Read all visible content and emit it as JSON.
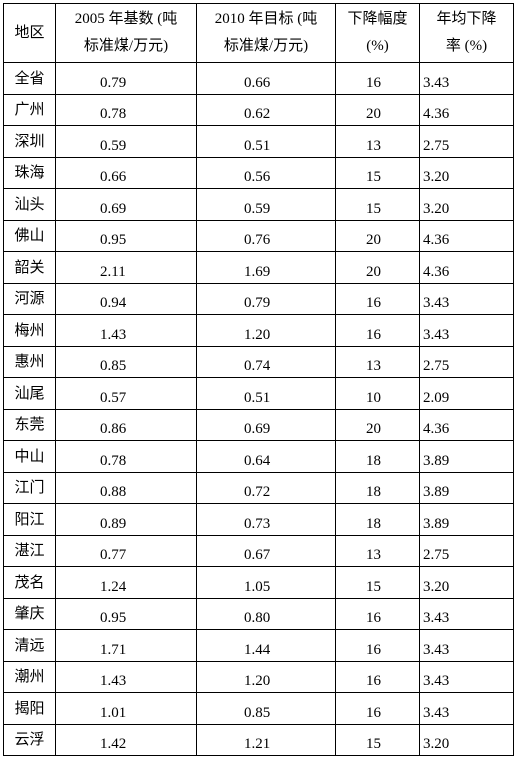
{
  "headers": {
    "region": "地区",
    "base_line1": "2005 年基数 (吨",
    "base_line2": "标准煤/万元)",
    "target_line1": "2010 年目标 (吨",
    "target_line2": "标准煤/万元)",
    "drop_line1": "下降幅度",
    "drop_line2": "(%)",
    "rate_line1": "年均下降",
    "rate_line2": "率 (%)"
  },
  "rows": [
    {
      "region": "全省",
      "base": "0.79",
      "target": "0.66",
      "drop": "16",
      "rate": "3.43"
    },
    {
      "region": "广州",
      "base": "0.78",
      "target": "0.62",
      "drop": "20",
      "rate": "4.36"
    },
    {
      "region": "深圳",
      "base": "0.59",
      "target": "0.51",
      "drop": "13",
      "rate": "2.75"
    },
    {
      "region": "珠海",
      "base": "0.66",
      "target": "0.56",
      "drop": "15",
      "rate": "3.20"
    },
    {
      "region": "汕头",
      "base": "0.69",
      "target": "0.59",
      "drop": "15",
      "rate": "3.20"
    },
    {
      "region": "佛山",
      "base": "0.95",
      "target": "0.76",
      "drop": "20",
      "rate": "4.36"
    },
    {
      "region": "韶关",
      "base": "2.11",
      "target": "1.69",
      "drop": "20",
      "rate": "4.36"
    },
    {
      "region": "河源",
      "base": "0.94",
      "target": "0.79",
      "drop": "16",
      "rate": "3.43"
    },
    {
      "region": "梅州",
      "base": "1.43",
      "target": "1.20",
      "drop": "16",
      "rate": "3.43"
    },
    {
      "region": "惠州",
      "base": "0.85",
      "target": "0.74",
      "drop": "13",
      "rate": "2.75"
    },
    {
      "region": "汕尾",
      "base": "0.57",
      "target": "0.51",
      "drop": "10",
      "rate": "2.09"
    },
    {
      "region": "东莞",
      "base": "0.86",
      "target": "0.69",
      "drop": "20",
      "rate": "4.36"
    },
    {
      "region": "中山",
      "base": "0.78",
      "target": "0.64",
      "drop": "18",
      "rate": "3.89"
    },
    {
      "region": "江门",
      "base": "0.88",
      "target": "0.72",
      "drop": "18",
      "rate": "3.89"
    },
    {
      "region": "阳江",
      "base": "0.89",
      "target": "0.73",
      "drop": "18",
      "rate": "3.89"
    },
    {
      "region": "湛江",
      "base": "0.77",
      "target": "0.67",
      "drop": "13",
      "rate": "2.75"
    },
    {
      "region": "茂名",
      "base": "1.24",
      "target": "1.05",
      "drop": "15",
      "rate": "3.20"
    },
    {
      "region": "肇庆",
      "base": "0.95",
      "target": "0.80",
      "drop": "16",
      "rate": "3.43"
    },
    {
      "region": "清远",
      "base": "1.71",
      "target": "1.44",
      "drop": "16",
      "rate": "3.43"
    },
    {
      "region": "潮州",
      "base": "1.43",
      "target": "1.20",
      "drop": "16",
      "rate": "3.43"
    },
    {
      "region": "揭阳",
      "base": "1.01",
      "target": "0.85",
      "drop": "16",
      "rate": "3.43"
    },
    {
      "region": "云浮",
      "base": "1.42",
      "target": "1.21",
      "drop": "15",
      "rate": "3.20"
    }
  ]
}
